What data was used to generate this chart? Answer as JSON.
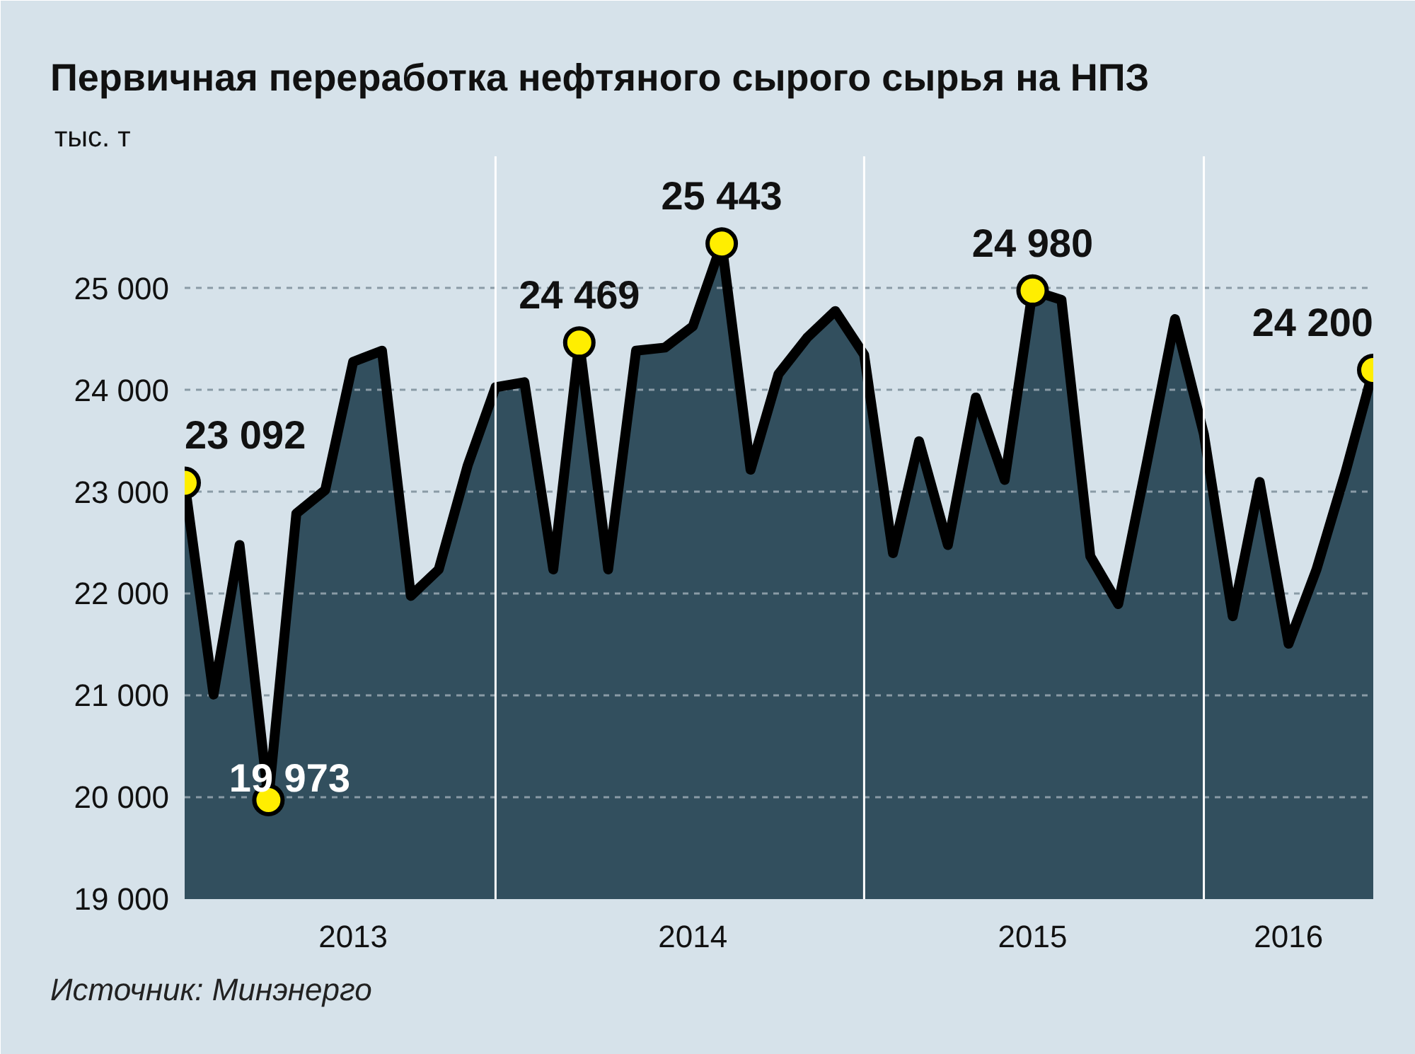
{
  "chart_data": {
    "type": "area",
    "title": "Первичная переработка нефтяного сырого сырья на НПЗ",
    "ylabel": "тыс. т",
    "annotations": [
      "Источник: Минэнерго"
    ],
    "x": [
      "2013-01",
      "2013-02",
      "2013-03",
      "2013-04",
      "2013-05",
      "2013-06",
      "2013-07",
      "2013-08",
      "2013-09",
      "2013-10",
      "2013-11",
      "2013-12",
      "2014-01",
      "2014-02",
      "2014-03",
      "2014-04",
      "2014-05",
      "2014-06",
      "2014-07",
      "2014-08",
      "2014-09",
      "2014-10",
      "2014-11",
      "2014-12",
      "2015-01",
      "2015-02",
      "2015-03",
      "2015-04",
      "2015-05",
      "2015-06",
      "2015-07",
      "2015-08",
      "2015-09",
      "2015-10",
      "2015-11",
      "2015-12",
      "2016-01",
      "2016-02",
      "2016-03",
      "2016-04",
      "2016-05",
      "2016-06",
      "2016-07"
    ],
    "series": [
      {
        "color": "#324f5e",
        "values": [
          23092,
          21010,
          22480,
          19973,
          22790,
          23020,
          24280,
          24390,
          21980,
          22240,
          23260,
          24030,
          24080,
          22240,
          24469,
          22240,
          24390,
          24420,
          24630,
          25443,
          23220,
          24160,
          24520,
          24780,
          24350,
          22400,
          23500,
          22480,
          23930,
          23120,
          24980,
          24890,
          22370,
          21900,
          23300,
          24700,
          23570,
          21780,
          23100,
          21510,
          22240,
          23190,
          24200
        ],
        "value_labels": [
          "23 092",
          null,
          null,
          "19 973",
          null,
          null,
          null,
          null,
          null,
          null,
          null,
          null,
          null,
          null,
          "24 469",
          null,
          null,
          null,
          null,
          "25 443",
          null,
          null,
          null,
          null,
          null,
          null,
          null,
          null,
          null,
          null,
          "24 980",
          null,
          null,
          null,
          null,
          null,
          null,
          null,
          null,
          null,
          null,
          null,
          "24 200"
        ]
      }
    ],
    "grid": "y",
    "ylim": [
      19000,
      26300
    ],
    "yticks": [
      {
        "value": 19000,
        "label": "19 000"
      },
      {
        "value": 20000,
        "label": "20 000"
      },
      {
        "value": 21000,
        "label": "21 000"
      },
      {
        "value": 22000,
        "label": "22 000"
      },
      {
        "value": 23000,
        "label": "23 000"
      },
      {
        "value": 24000,
        "label": "24 000"
      },
      {
        "value": 25000,
        "label": "25 000"
      }
    ],
    "xlim": [
      "2013-01",
      "2016-07"
    ],
    "xticks": [
      {
        "value": "2013-07",
        "label": "2013"
      },
      {
        "value": "2014-07",
        "label": "2014"
      },
      {
        "value": "2015-07",
        "label": "2015"
      },
      {
        "value": "2016-04",
        "label": "2016"
      }
    ],
    "ref_lines": [
      {
        "axis": "x",
        "value": "2013-12",
        "label": null,
        "color": "#ffffff"
      },
      {
        "axis": "x",
        "value": "2015-01",
        "label": null,
        "color": "#ffffff"
      },
      {
        "axis": "x",
        "value": "2016-01",
        "label": null,
        "color": "#ffffff"
      }
    ]
  }
}
